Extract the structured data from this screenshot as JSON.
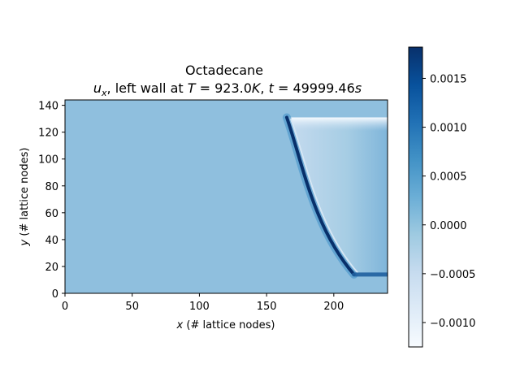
{
  "chart_data": {
    "type": "heatmap",
    "title": "Octadecane",
    "subtitle": {
      "symbol": "u",
      "symbol_sub": "x",
      "mid_text": ", left wall at ",
      "temp_symbol": "T",
      "temp_value": " = 923.0",
      "temp_unit": "K",
      "sep": ", ",
      "time_symbol": "t",
      "time_value": " = 49999.46",
      "time_unit": "s"
    },
    "xlabel": {
      "symbol": "x",
      "text": " (# lattice nodes)"
    },
    "ylabel": {
      "symbol": "y",
      "text": " (# lattice nodes)"
    },
    "xlim": [
      0,
      240
    ],
    "ylim": [
      0,
      144
    ],
    "xticks": [
      0,
      50,
      100,
      150,
      200
    ],
    "yticks": [
      0,
      20,
      40,
      60,
      80,
      100,
      120,
      140
    ],
    "colormap": "Blues",
    "colorbar": {
      "range": [
        -0.00125,
        0.00182
      ],
      "ticks": [
        0.0015,
        0.001,
        0.0005,
        0.0,
        -0.0005,
        -0.001
      ],
      "tick_labels": [
        "0.0015",
        "0.0010",
        "0.0005",
        "0.0000",
        "−0.0005",
        "−0.0010"
      ]
    },
    "field": {
      "background_value": 0.0,
      "front_top": {
        "x": 165,
        "y": 131
      },
      "front_bottom": {
        "x": 215,
        "y": 14
      },
      "front_peak_value": 0.0018,
      "top_edge_value": -0.0012,
      "right_wall_x": 240
    },
    "grid": false
  }
}
